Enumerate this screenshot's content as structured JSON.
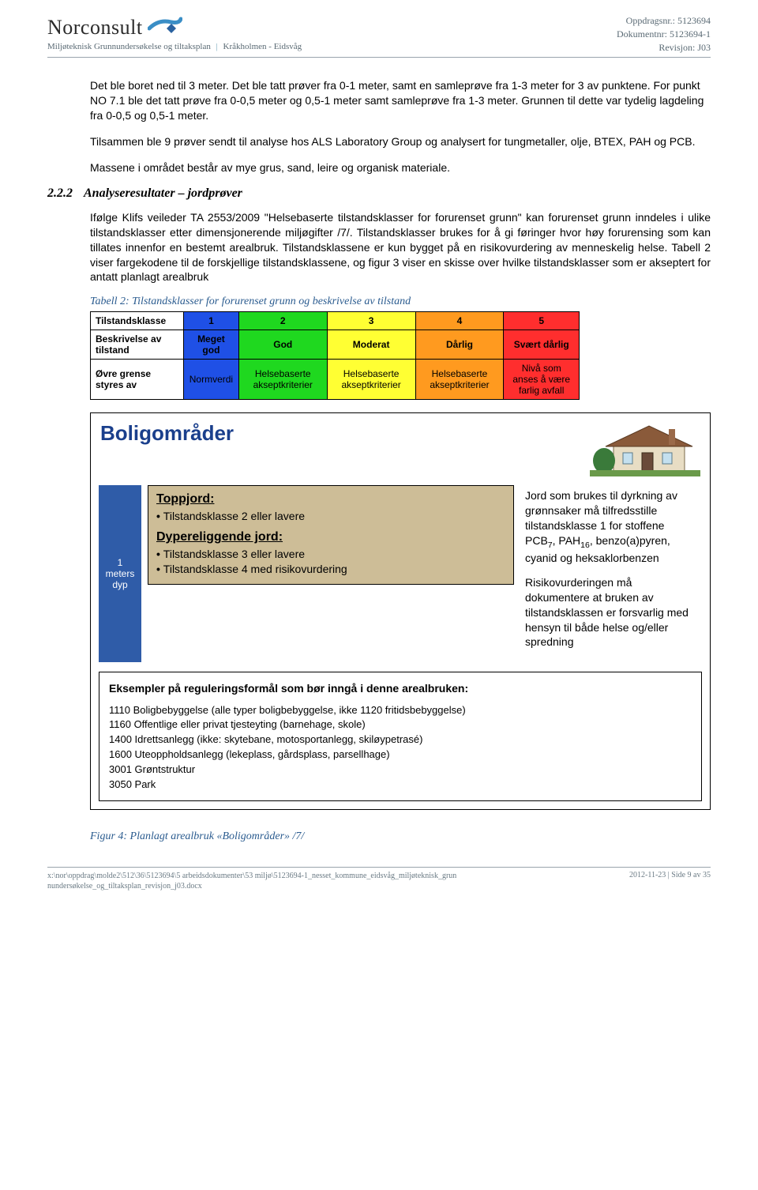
{
  "header": {
    "logo_text": "Norconsult",
    "subtitle_left": "Miljøteknisk Grunnundersøkelse og tiltaksplan",
    "subtitle_right": "Kråkholmen - Eidsvåg",
    "right_lines": {
      "l1": "Oppdragsnr.: 5123694",
      "l2": "Dokumentnr: 5123694-1",
      "l3": "Revisjon: J03"
    },
    "logo_colors": {
      "swoosh": "#3a8ec6",
      "diamond": "#2a62a0"
    }
  },
  "body": {
    "p1": "Det ble boret ned til 3 meter. Det ble tatt prøver fra 0-1 meter, samt en samleprøve fra 1-3 meter for 3 av punktene. For punkt NO 7.1 ble det tatt prøve fra 0-0,5 meter og 0,5-1 meter samt samleprøve fra 1-3 meter. Grunnen til dette var tydelig lagdeling fra 0-0,5 og 0,5-1 meter.",
    "p2": "Tilsammen ble 9 prøver sendt til analyse hos ALS Laboratory Group og analysert for tungmetaller, olje, BTEX, PAH og PCB.",
    "p3": "Massene i området består av mye grus, sand, leire og organisk materiale."
  },
  "section": {
    "num": "2.2.2",
    "title": "Analyseresultater – jordprøver",
    "para": "Ifølge Klifs veileder TA 2553/2009 \"Helsebaserte tilstandsklasser for forurenset grunn\" kan forurenset grunn inndeles i ulike tilstandsklasser etter dimensjonerende miljøgifter /7/. Tilstandsklasser brukes for å gi føringer hvor høy forurensing som kan tillates innenfor en bestemt arealbruk. Tilstandsklassene er kun bygget på en risikovurdering av menneskelig helse. Tabell 2 viser fargekodene til de forskjellige tilstandsklassene, og figur 3 viser en skisse over hvilke tilstandsklasser som er akseptert for antatt planlagt arealbruk"
  },
  "table": {
    "caption": "Tabell 2: Tilstandsklasser for forurenset grunn og beskrivelse av tilstand",
    "row1_head": "Tilstandsklasse",
    "row2_head": "Beskrivelse av tilstand",
    "row3_head": "Øvre grense styres av",
    "cols": [
      {
        "num": "1",
        "desc": "Meget god",
        "limit": "Normverdi",
        "bg": "#1f50e6",
        "text": "#000000"
      },
      {
        "num": "2",
        "desc": "God",
        "limit": "Helsebaserte akseptkriterier",
        "bg": "#1fd81f",
        "text": "#000000"
      },
      {
        "num": "3",
        "desc": "Moderat",
        "limit": "Helsebaserte akseptkriterier",
        "bg": "#ffff33",
        "text": "#000000"
      },
      {
        "num": "4",
        "desc": "Dårlig",
        "limit": "Helsebaserte akseptkriterier",
        "bg": "#ff9a1f",
        "text": "#000000"
      },
      {
        "num": "5",
        "desc": "Svært dårlig",
        "limit": "Nivå som anses å være farlig avfall",
        "bg": "#ff2e2e",
        "text": "#000000"
      }
    ]
  },
  "infobox": {
    "title": "Boligområder",
    "depth_label": "1 meters dyp",
    "topjord": {
      "heading": "Toppjord:",
      "items": [
        "Tilstandsklasse 2 eller lavere"
      ]
    },
    "dyp": {
      "heading": "Dypereliggende jord:",
      "items": [
        "Tilstandsklasse 3 eller lavere",
        "Tilstandsklasse 4 med risikovurdering"
      ]
    },
    "side_p1_html": "Jord som brukes til dyrkning av grønnsaker må tilfredsstille tilstandsklasse 1 for stoffene PCB<sub>7</sub>, PAH<sub>16</sub>, benzo(a)pyren, cyanid og heksaklorbenzen",
    "side_p2": "Risikovurderingen må dokumentere at bruken av tilstandsklassen er forsvarlig med hensyn til både helse og/eller spredning",
    "examples": {
      "heading": "Eksempler på reguleringsformål som bør inngå i denne arealbruken:",
      "lines": [
        "1110 Boligbebyggelse (alle typer boligbebyggelse, ikke 1120 fritidsbebyggelse)",
        "1160 Offentlige eller privat tjesteyting (barnehage, skole)",
        "1400 Idrettsanlegg (ikke: skytebane, motosportanlegg, skiløypetrasé)",
        "1600 Uteoppholdsanlegg (lekeplass, gårdsplass, parsellhage)",
        "3001 Grøntstruktur",
        "3050 Park"
      ]
    },
    "soil_bg": "#cdbd97",
    "depth_bg": "#2f5ca8"
  },
  "figure_caption": "Figur 4: Planlagt arealbruk «Boligområder» /7/",
  "footer": {
    "left": "x:\\nor\\oppdrag\\molde2\\512\\36\\5123694\\5 arbeidsdokumenter\\53 miljø\\5123694-1_nesset_kommune_eidsvåg_miljøteknisk_grunnundersøkelse_og_tiltaksplan_revisjon_j03.docx",
    "right": "2012-11-23 | Side 9 av 35"
  }
}
